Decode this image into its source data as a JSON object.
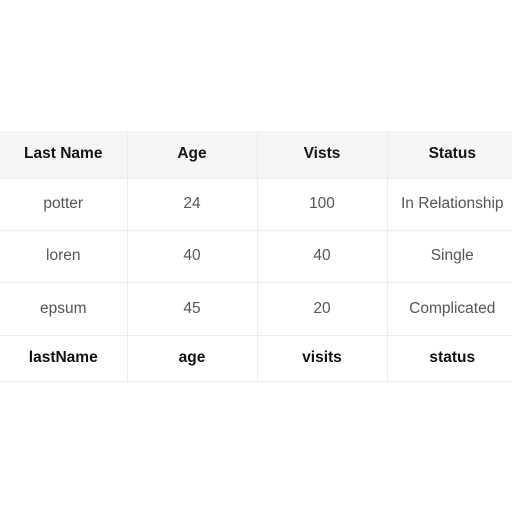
{
  "table": {
    "headers": [
      "Last Name",
      "Age",
      "Vists",
      "Status"
    ],
    "rows": [
      [
        "potter",
        "24",
        "100",
        "In Relationship"
      ],
      [
        "loren",
        "40",
        "40",
        "Single"
      ],
      [
        "epsum",
        "45",
        "20",
        "Complicated"
      ]
    ],
    "footers": [
      "lastName",
      "age",
      "visits",
      "status"
    ]
  }
}
